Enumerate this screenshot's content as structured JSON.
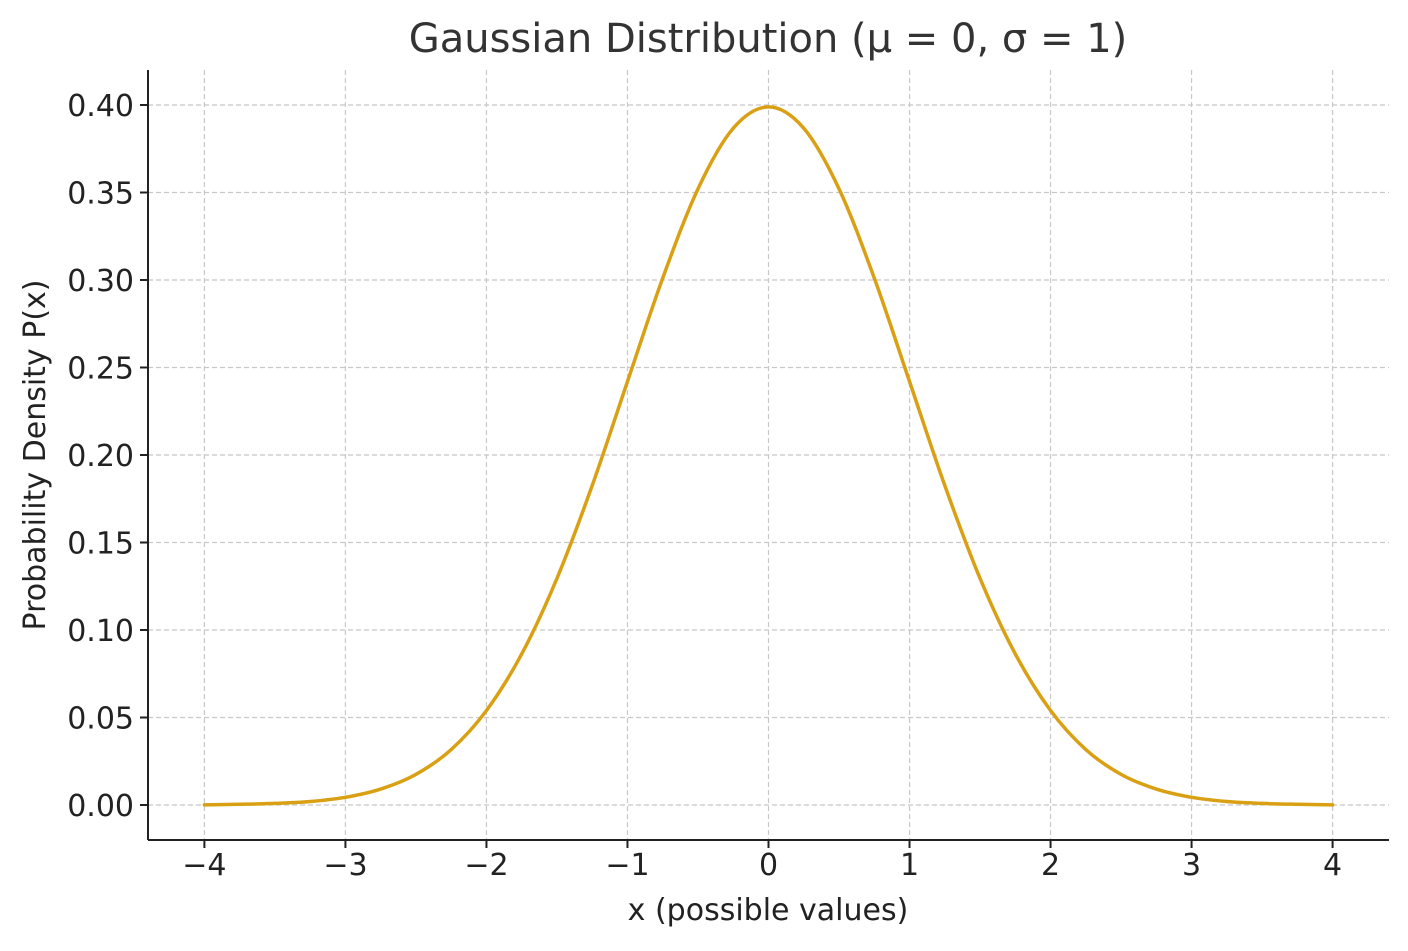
{
  "chart_data": {
    "type": "line",
    "title": "Gaussian Distribution (μ = 0, σ = 1)",
    "xlabel": "x (possible values)",
    "ylabel": "Probability Density P(x)",
    "xlim": [
      -4.4,
      4.4
    ],
    "ylim": [
      -0.02,
      0.42
    ],
    "xticks": [
      -4,
      -3,
      -2,
      -1,
      0,
      1,
      2,
      3,
      4
    ],
    "xtick_labels": [
      "−4",
      "−3",
      "−2",
      "−1",
      "0",
      "1",
      "2",
      "3",
      "4"
    ],
    "yticks": [
      0.0,
      0.05,
      0.1,
      0.15,
      0.2,
      0.25,
      0.3,
      0.35,
      0.4
    ],
    "ytick_labels": [
      "0.00",
      "0.05",
      "0.10",
      "0.15",
      "0.20",
      "0.25",
      "0.30",
      "0.35",
      "0.40"
    ],
    "grid": true,
    "series": [
      {
        "color": "#DAA014",
        "x": [
          -4.0,
          -3.75,
          -3.5,
          -3.25,
          -3.0,
          -2.75,
          -2.5,
          -2.25,
          -2.0,
          -1.75,
          -1.5,
          -1.25,
          -1.0,
          -0.75,
          -0.5,
          -0.25,
          0.0,
          0.25,
          0.5,
          0.75,
          1.0,
          1.25,
          1.5,
          1.75,
          2.0,
          2.25,
          2.5,
          2.75,
          3.0,
          3.25,
          3.5,
          3.75,
          4.0
        ],
        "y": [
          0.0001,
          0.0004,
          0.0009,
          0.002,
          0.0044,
          0.0091,
          0.0175,
          0.0317,
          0.054,
          0.0863,
          0.1295,
          0.1826,
          0.242,
          0.3011,
          0.3521,
          0.3867,
          0.3989,
          0.3867,
          0.3521,
          0.3011,
          0.242,
          0.1826,
          0.1295,
          0.0863,
          0.054,
          0.0317,
          0.0175,
          0.0091,
          0.0044,
          0.002,
          0.0009,
          0.0004,
          0.0001
        ]
      }
    ]
  }
}
